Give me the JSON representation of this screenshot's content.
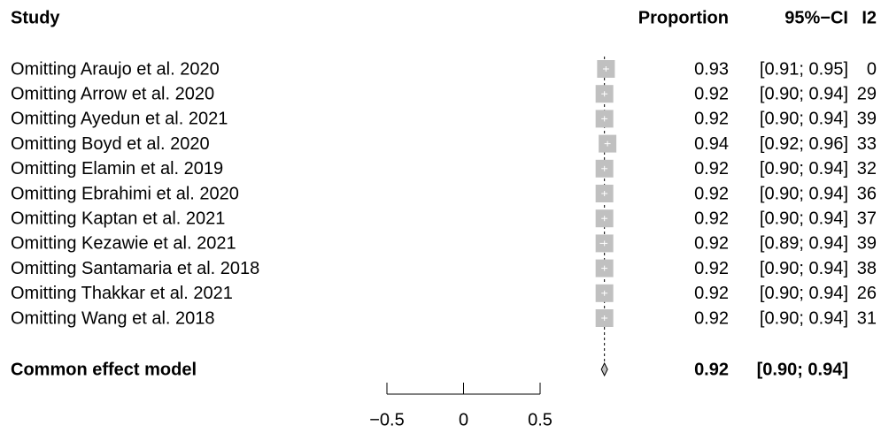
{
  "chart_data": {
    "type": "forest",
    "headers": {
      "study": "Study",
      "proportion": "Proportion",
      "ci": "95%−CI",
      "i2": "I2"
    },
    "categories": [
      "Omitting Araujo et al. 2020",
      "Omitting Arrow et al. 2020",
      "Omitting Ayedun et al. 2021",
      "Omitting Boyd et al. 2020",
      "Omitting Elamin et al. 2019",
      "Omitting Ebrahimi et al. 2020",
      "Omitting Kaptan et al. 2021",
      "Omitting Kezawie et al. 2021",
      "Omitting Santamaria et al. 2018",
      "Omitting Thakkar et al. 2021",
      "Omitting Wang et al. 2018"
    ],
    "values": [
      0.93,
      0.92,
      0.92,
      0.94,
      0.92,
      0.92,
      0.92,
      0.92,
      0.92,
      0.92,
      0.92
    ],
    "ci_lower": [
      0.91,
      0.9,
      0.9,
      0.92,
      0.9,
      0.9,
      0.9,
      0.89,
      0.9,
      0.9,
      0.9
    ],
    "ci_upper": [
      0.95,
      0.94,
      0.94,
      0.96,
      0.94,
      0.94,
      0.94,
      0.94,
      0.94,
      0.94,
      0.94
    ],
    "ci_labels": [
      "[0.91; 0.95]",
      "[0.90; 0.94]",
      "[0.90; 0.94]",
      "[0.92; 0.96]",
      "[0.90; 0.94]",
      "[0.90; 0.94]",
      "[0.90; 0.94]",
      "[0.89; 0.94]",
      "[0.90; 0.94]",
      "[0.90; 0.94]",
      "[0.90; 0.94]"
    ],
    "i2": [
      0,
      29,
      39,
      33,
      32,
      36,
      37,
      39,
      38,
      26,
      31
    ],
    "pooled": {
      "label": "Common effect model",
      "value": 0.92,
      "ci_lower": 0.9,
      "ci_upper": 0.94,
      "ci_label": "[0.90; 0.94]"
    },
    "xlim": [
      -0.5,
      0.5
    ],
    "xticks": [
      {
        "value": -0.5,
        "label": "−0.5"
      },
      0,
      0.5
    ],
    "color": "#c0c0c0"
  }
}
